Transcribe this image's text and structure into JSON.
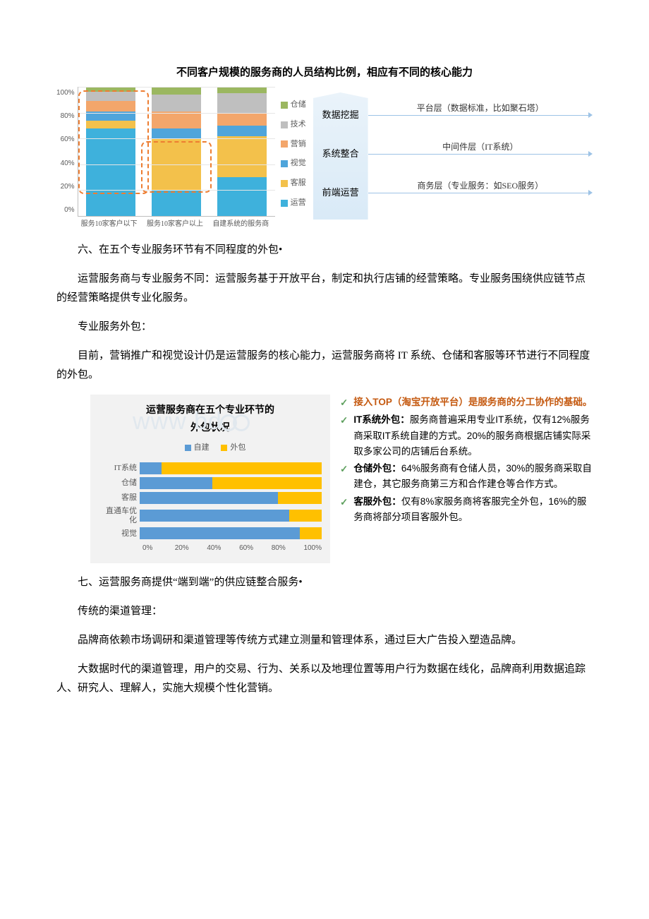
{
  "chart1": {
    "title": "不同客户规模的服务商的人员结构比例，相应有不同的核心能力",
    "yticks": [
      "100%",
      "80%",
      "60%",
      "40%",
      "20%",
      "0%"
    ],
    "categories": [
      "服务10家客户以下",
      "服务10家客户以上",
      "自建系统的服务商"
    ],
    "series": [
      {
        "name": "运营",
        "color": "#3eb1dc"
      },
      {
        "name": "客服",
        "color": "#f3c14b"
      },
      {
        "name": "视觉",
        "color": "#4fa5db"
      },
      {
        "name": "营销",
        "color": "#f3a66b"
      },
      {
        "name": "技术",
        "color": "#bfbfbf"
      },
      {
        "name": "仓储",
        "color": "#9bb760"
      }
    ],
    "bars": [
      {
        "运营": 68,
        "客服": 6,
        "视觉": 7,
        "营销": 8,
        "技术": 7,
        "仓储": 4
      },
      {
        "运营": 20,
        "客服": 40,
        "视觉": 8,
        "营销": 13,
        "技术": 13,
        "仓储": 6
      },
      {
        "运营": 30,
        "客服": 32,
        "视觉": 8,
        "营销": 9,
        "技术": 16,
        "仓储": 5
      }
    ],
    "dash_boxes": [
      {
        "left_pct": 0,
        "width_pct": 36,
        "top_pct": 3,
        "height_pct": 80
      },
      {
        "left_pct": 32,
        "width_pct": 36,
        "top_pct": 42,
        "height_pct": 40
      }
    ],
    "right_rows": [
      {
        "left": "数据挖掘",
        "right": "平台层（数据标准，比如聚石塔）"
      },
      {
        "left": "系统整合",
        "right": "中间件层（IT系统）"
      },
      {
        "left": "前端运营",
        "right": "商务层（专业服务：如SEO服务）"
      }
    ],
    "grid_color": "#e6e6e6",
    "axis_color": "#bfbfbf"
  },
  "para1": "六、在五个专业服务环节有不同程度的外包•",
  "para2": "运营服务商与专业服务不同：运营服务基于开放平台，制定和执行店铺的经营策略。专业服务围绕供应链节点的经营策略提供专业化服务。",
  "para3": "专业服务外包：",
  "para4": "目前，营销推广和视觉设计仍是运营服务的核心能力，运营服务商将 IT 系统、仓储和客服等环节进行不同程度的外包。",
  "chart2": {
    "title": "运营服务商在五个专业环节的\n外包状况",
    "legend": {
      "a": "自建",
      "b": "外包",
      "a_color": "#5b9bd5",
      "b_color": "#ffc000"
    },
    "rows": [
      {
        "label": "IT系统",
        "a": 12,
        "b": 88
      },
      {
        "label": "仓储",
        "a": 40,
        "b": 60
      },
      {
        "label": "客服",
        "a": 76,
        "b": 24
      },
      {
        "label": "直通车优化",
        "a": 82,
        "b": 18
      },
      {
        "label": "视觉",
        "a": 88,
        "b": 12
      }
    ],
    "xticks": [
      "0%",
      "20%",
      "40%",
      "60%",
      "80%",
      "100%"
    ],
    "bg_color": "#f2f2f2",
    "watermark": "www.bd"
  },
  "bullets": [
    {
      "lead_orange": "接入TOP（淘宝开放平台）是服务商的分工协作的基础。",
      "rest": ""
    },
    {
      "bold": "IT系统外包：",
      "rest": "服务商普遍采用专业IT系统，仅有12%服务商采取IT系统自建的方式。20%的服务商根据店铺实际采取多家公司的店铺后台系统。"
    },
    {
      "bold": "仓储外包：",
      "rest": "64%服务商有仓储人员，30%的服务商采取自建仓，其它服务商第三方和合作建仓等合作方式。"
    },
    {
      "bold": "客服外包：",
      "rest": "仅有8%家服务商将客服完全外包，16%的服务商将部分项目客服外包。"
    }
  ],
  "para5": "七、运营服务商提供“端到端”的供应链整合服务•",
  "para6": "传统的渠道管理：",
  "para7": "品牌商依赖市场调研和渠道管理等传统方式建立测量和管理体系，通过巨大广告投入塑造品牌。",
  "para8": "大数据时代的渠道管理，用户的交易、行为、关系以及地理位置等用户行为数据在线化，品牌商利用数据追踪人、研究人、理解人，实施大规模个性化营销。"
}
